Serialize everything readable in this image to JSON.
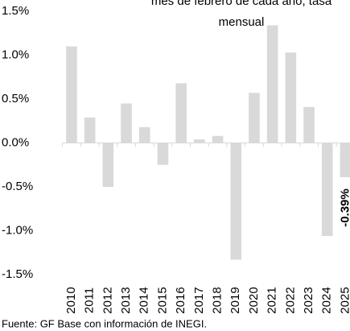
{
  "chart_data": {
    "type": "bar",
    "title": [
      "mes de febrero de cada año, tasa",
      "mensual"
    ],
    "categories": [
      "2010",
      "2011",
      "2012",
      "2013",
      "2014",
      "2015",
      "2016",
      "2017",
      "2018",
      "2019",
      "2020",
      "2021",
      "2022",
      "2023",
      "2024",
      "2025"
    ],
    "values": [
      1.1,
      0.29,
      -0.5,
      0.45,
      0.18,
      -0.25,
      0.68,
      0.04,
      0.08,
      -1.33,
      0.57,
      1.34,
      1.03,
      0.41,
      -1.06,
      -0.39
    ],
    "value_labels": [
      null,
      null,
      null,
      null,
      null,
      null,
      null,
      null,
      null,
      null,
      null,
      null,
      null,
      null,
      null,
      "-0.39%"
    ],
    "color": "#d9d9d9",
    "ylim": [
      -1.5,
      1.5
    ],
    "yticks": [
      {
        "value": -1.5,
        "label": "-1.5%"
      },
      {
        "value": -1.0,
        "label": "-1.0%"
      },
      {
        "value": -0.5,
        "label": "-0.5%"
      },
      {
        "value": 0,
        "label": "0.0%"
      },
      {
        "value": 0.5,
        "label": "0.5%"
      },
      {
        "value": 1.0,
        "label": "1.0%"
      },
      {
        "value": 1.5,
        "label": "1.5%"
      }
    ],
    "source": "Fuente: GF Base con información de INEGI."
  }
}
